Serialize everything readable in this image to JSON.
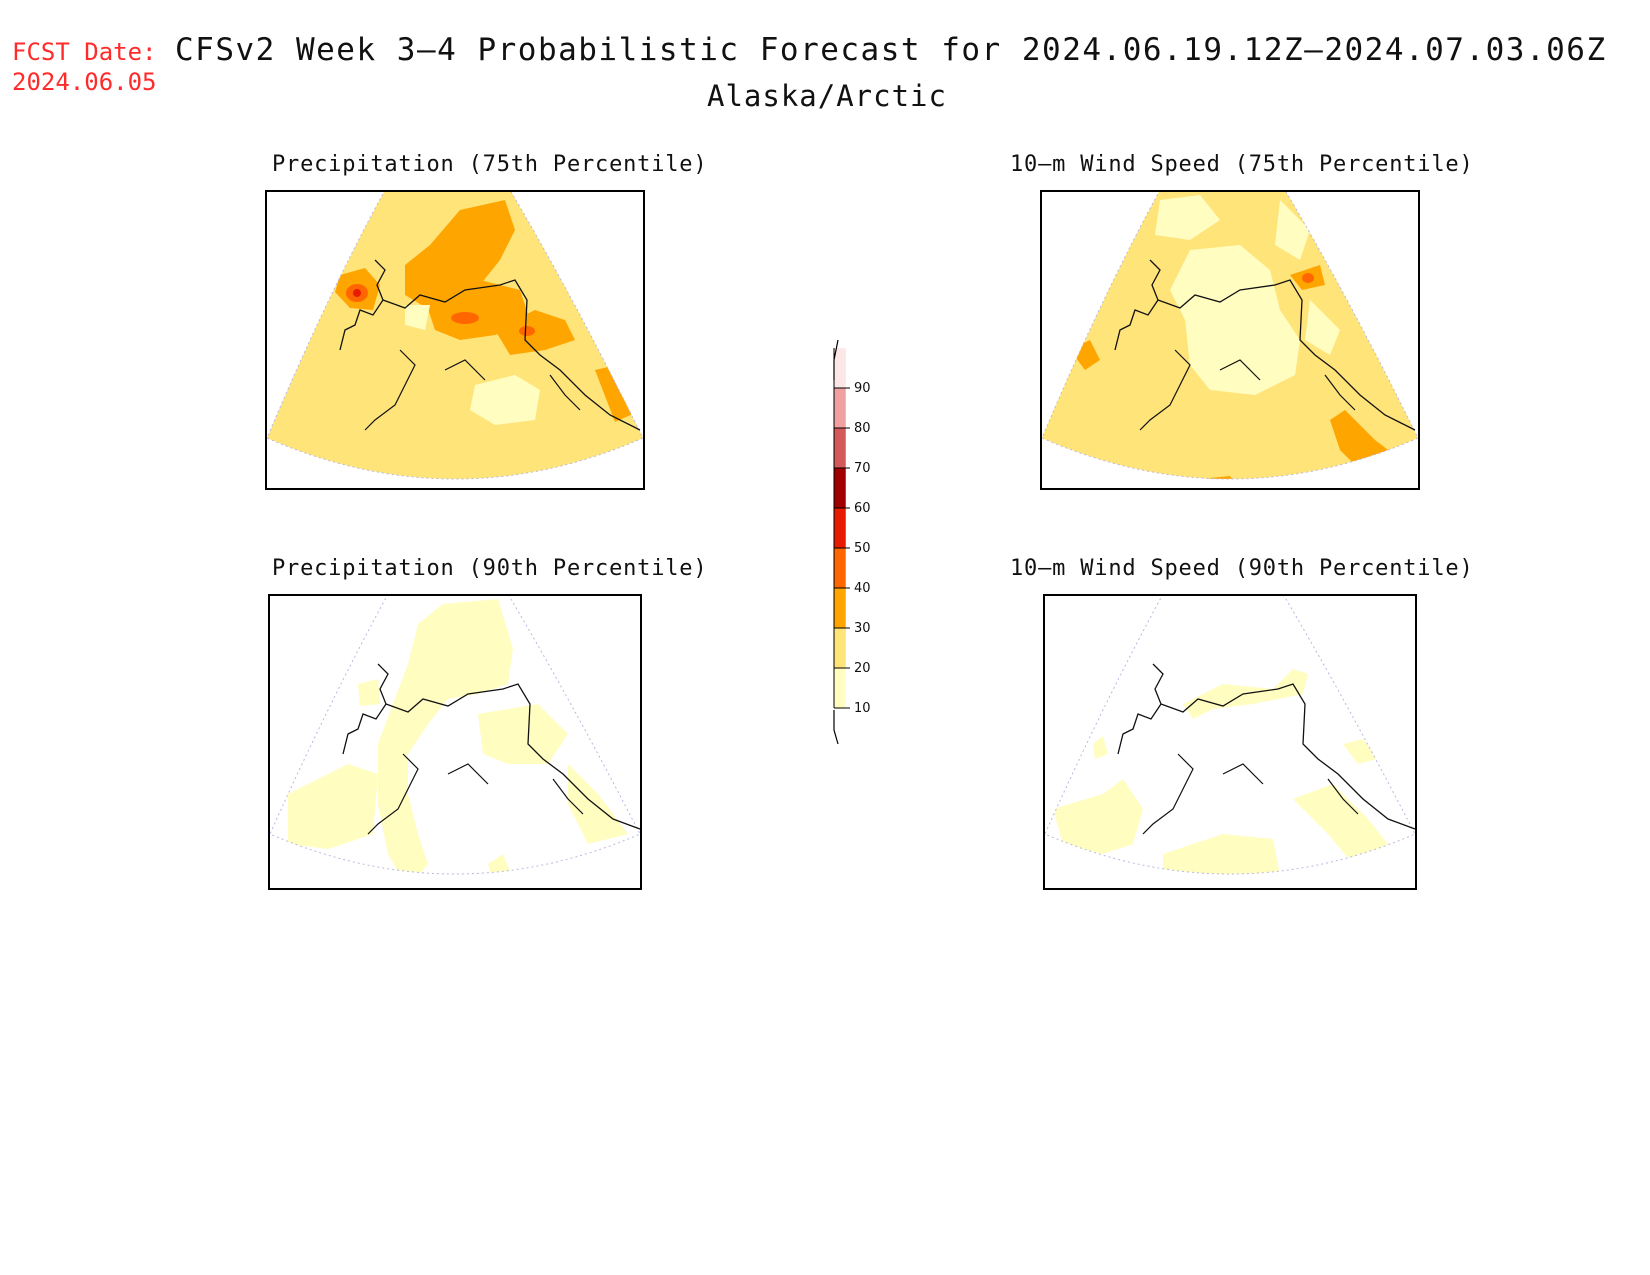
{
  "header": {
    "fcst_label": "FCST Date:",
    "fcst_date": "2024.06.05",
    "title": "CFSv2 Week 3–4 Probabilistic Forecast for 2024.06.19.12Z–2024.07.03.06Z",
    "region": "Alaska/Arctic"
  },
  "panels": [
    {
      "id": "precip75",
      "title": "Precipitation (75th Percentile)"
    },
    {
      "id": "wind75",
      "title": "10–m Wind Speed (75th Percentile)"
    },
    {
      "id": "precip90",
      "title": "Precipitation (90th Percentile)"
    },
    {
      "id": "wind90",
      "title": "10–m Wind Speed (90th Percentile)"
    }
  ],
  "colorbar": {
    "levels": [
      "10",
      "20",
      "30",
      "40",
      "50",
      "60",
      "70",
      "80",
      "90"
    ],
    "colors": [
      "#fffdc0",
      "#ffe47a",
      "#ffa500",
      "#ff6600",
      "#e61b00",
      "#a00000",
      "#d45a5a",
      "#f0a0a0",
      "#fde6e6"
    ]
  }
}
